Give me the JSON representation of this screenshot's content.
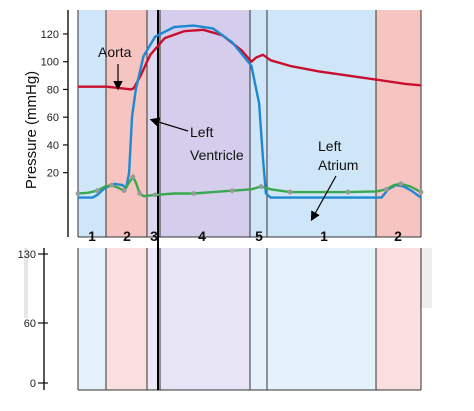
{
  "chart_data": [
    {
      "type": "line",
      "ylabel": "Pressure (mmHg)",
      "ylim": [
        0,
        130
      ],
      "yticks": [
        20,
        40,
        60,
        80,
        100,
        120
      ],
      "grid": false,
      "phases": [
        "1",
        "2",
        "3",
        "4",
        "5",
        "1",
        "2"
      ],
      "phase_colors": {
        "1": "#cfe6f8",
        "2": "#f6c5c2",
        "3": "#dcd8f0",
        "4": "#d4cdec",
        "5": "#cfe6f8"
      },
      "annotations": [
        {
          "text": "Aorta",
          "series": "aorta"
        },
        {
          "text": "Left",
          "series": "left_ventricle"
        },
        {
          "text": "Ventricle",
          "series": "left_ventricle"
        },
        {
          "text": "Left",
          "series": "left_atrium"
        },
        {
          "text": "Atrium",
          "series": "left_atrium"
        }
      ],
      "series": [
        {
          "key": "aorta",
          "color": "#c8102e",
          "points": [
            [
              0,
              82
            ],
            [
              0.15,
              82
            ],
            [
              0.3,
              82
            ],
            [
              0.43,
              81
            ],
            [
              0.55,
              80
            ],
            [
              0.58,
              81
            ],
            [
              0.65,
              90
            ],
            [
              0.75,
              105
            ],
            [
              0.9,
              117
            ],
            [
              1.1,
              122
            ],
            [
              1.3,
              123
            ],
            [
              1.5,
              119
            ],
            [
              1.7,
              108
            ],
            [
              1.8,
              100
            ],
            [
              1.85,
              103
            ],
            [
              1.92,
              105
            ],
            [
              2.0,
              101
            ],
            [
              2.2,
              97
            ],
            [
              2.5,
              93
            ],
            [
              2.8,
              90
            ],
            [
              3.1,
              87
            ],
            [
              3.4,
              84
            ],
            [
              3.56,
              83
            ]
          ]
        },
        {
          "key": "left_ventricle",
          "color": "#1e88d0",
          "points": [
            [
              0,
              2
            ],
            [
              0.15,
              2
            ],
            [
              0.2,
              4
            ],
            [
              0.28,
              9
            ],
            [
              0.38,
              12
            ],
            [
              0.46,
              11
            ],
            [
              0.5,
              9
            ],
            [
              0.53,
              20
            ],
            [
              0.56,
              60
            ],
            [
              0.6,
              80
            ],
            [
              0.68,
              104
            ],
            [
              0.8,
              118
            ],
            [
              1.0,
              125
            ],
            [
              1.2,
              126
            ],
            [
              1.4,
              124
            ],
            [
              1.6,
              114
            ],
            [
              1.8,
              97
            ],
            [
              1.88,
              70
            ],
            [
              1.92,
              30
            ],
            [
              1.95,
              5
            ],
            [
              2.0,
              2
            ],
            [
              2.5,
              2
            ],
            [
              3.0,
              2
            ],
            [
              3.15,
              2
            ],
            [
              3.22,
              8
            ],
            [
              3.3,
              11
            ],
            [
              3.38,
              10
            ],
            [
              3.46,
              7
            ],
            [
              3.56,
              2
            ]
          ]
        },
        {
          "key": "left_atrium",
          "color": "#3aa84f",
          "markers": true,
          "points": [
            [
              0,
              5
            ],
            [
              0.1,
              5.5
            ],
            [
              0.2,
              7
            ],
            [
              0.28,
              10
            ],
            [
              0.35,
              11
            ],
            [
              0.42,
              9
            ],
            [
              0.48,
              7
            ],
            [
              0.53,
              13
            ],
            [
              0.57,
              17
            ],
            [
              0.6,
              13
            ],
            [
              0.64,
              5
            ],
            [
              0.68,
              3
            ],
            [
              0.8,
              4
            ],
            [
              1.0,
              5
            ],
            [
              1.2,
              5
            ],
            [
              1.4,
              6
            ],
            [
              1.6,
              7
            ],
            [
              1.8,
              8
            ],
            [
              1.9,
              10
            ],
            [
              2.0,
              8
            ],
            [
              2.2,
              6
            ],
            [
              2.5,
              6
            ],
            [
              2.8,
              6
            ],
            [
              3.1,
              6.5
            ],
            [
              3.2,
              8
            ],
            [
              3.28,
              11
            ],
            [
              3.35,
              12
            ],
            [
              3.45,
              10
            ],
            [
              3.56,
              6
            ]
          ]
        }
      ]
    },
    {
      "type": "line",
      "ylim": [
        0,
        130
      ],
      "yticks": [
        0,
        60,
        130
      ],
      "grid": false,
      "phases": [
        "1",
        "2",
        "3",
        "4",
        "5",
        "1",
        "2"
      ]
    }
  ]
}
